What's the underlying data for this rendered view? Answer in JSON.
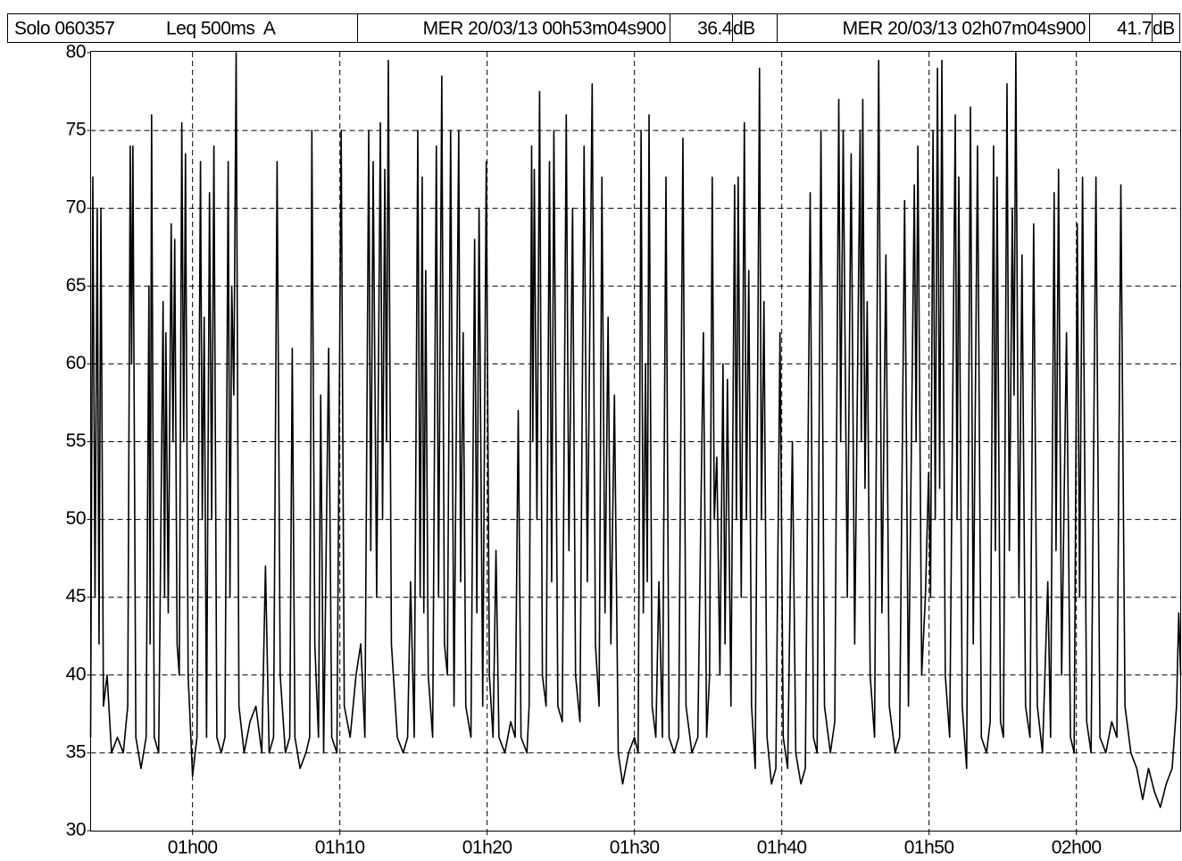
{
  "header": {
    "device": "Solo 060357",
    "mode": "Leq 500ms  A",
    "cursor1": {
      "time": "MER 20/03/13 00h53m04s900",
      "level": "36.4",
      "unit": "dB"
    },
    "cursor2": {
      "time": "MER 20/03/13 02h07m04s900",
      "level": "41.7",
      "unit": "dB"
    }
  },
  "chart_data": {
    "type": "line",
    "color": "#000000",
    "grid": true,
    "xlim": [
      53.08,
      127.08
    ],
    "xticks": [
      {
        "value": 60,
        "label": "01h00"
      },
      {
        "value": 70,
        "label": "01h10"
      },
      {
        "value": 80,
        "label": "01h20"
      },
      {
        "value": 90,
        "label": "01h30"
      },
      {
        "value": 100,
        "label": "01h40"
      },
      {
        "value": 110,
        "label": "01h50"
      },
      {
        "value": 120,
        "label": "02h00"
      }
    ],
    "ylim": [
      30,
      80
    ],
    "yticks": [
      30,
      35,
      40,
      45,
      50,
      55,
      60,
      65,
      70,
      75,
      80
    ],
    "x": [
      53.08,
      53.23,
      53.38,
      53.53,
      53.65,
      53.78,
      53.95,
      54.2,
      54.5,
      54.9,
      55.3,
      55.6,
      55.77,
      55.86,
      55.95,
      56.15,
      56.5,
      56.85,
      57.04,
      57.12,
      57.22,
      57.4,
      57.7,
      58.0,
      58.1,
      58.19,
      58.35,
      58.55,
      58.67,
      58.79,
      58.95,
      59.1,
      59.27,
      59.4,
      59.52,
      59.7,
      60.0,
      60.3,
      60.54,
      60.66,
      60.79,
      60.95,
      61.15,
      61.3,
      61.45,
      61.65,
      61.95,
      62.2,
      62.42,
      62.54,
      62.66,
      62.8,
      62.96,
      63.15,
      63.5,
      63.9,
      64.3,
      64.7,
      64.95,
      65.2,
      65.5,
      65.74,
      65.95,
      66.3,
      66.6,
      66.77,
      66.95,
      67.3,
      67.7,
      67.95,
      68.1,
      68.3,
      68.55,
      68.7,
      68.9,
      69.24,
      69.45,
      69.8,
      70.09,
      70.3,
      70.7,
      71.1,
      71.42,
      71.7,
      71.96,
      72.1,
      72.26,
      72.5,
      72.75,
      72.9,
      73.05,
      73.17,
      73.29,
      73.5,
      73.9,
      74.3,
      74.6,
      74.8,
      75.05,
      75.29,
      75.45,
      75.59,
      75.7,
      75.83,
      76.0,
      76.3,
      76.55,
      76.7,
      76.92,
      77.1,
      77.3,
      77.52,
      77.75,
      78.07,
      78.2,
      78.37,
      78.55,
      78.9,
      79.15,
      79.3,
      79.45,
      79.7,
      79.94,
      80.15,
      80.4,
      80.6,
      80.8,
      81.2,
      81.6,
      81.9,
      82.11,
      82.3,
      82.7,
      82.85,
      83.02,
      83.1,
      83.2,
      83.38,
      83.56,
      83.75,
      84.0,
      84.23,
      84.38,
      84.53,
      84.8,
      85.1,
      85.37,
      85.55,
      85.8,
      86.0,
      86.3,
      86.58,
      86.8,
      87.13,
      87.35,
      87.6,
      87.79,
      88.0,
      88.21,
      88.4,
      88.64,
      88.9,
      89.2,
      89.6,
      90.0,
      90.25,
      90.45,
      90.6,
      90.75,
      90.87,
      90.99,
      91.2,
      91.45,
      91.66,
      91.9,
      92.14,
      92.35,
      92.7,
      93.0,
      93.29,
      93.5,
      93.9,
      94.3,
      94.68,
      94.9,
      95.1,
      95.28,
      95.42,
      95.59,
      95.8,
      96.01,
      96.15,
      96.31,
      96.55,
      96.8,
      96.92,
      97.04,
      97.25,
      97.46,
      97.6,
      97.76,
      97.95,
      98.2,
      98.49,
      98.62,
      98.79,
      99.0,
      99.3,
      99.6,
      99.88,
      100.1,
      100.4,
      100.72,
      100.95,
      101.3,
      101.6,
      101.93,
      102.15,
      102.4,
      102.66,
      102.9,
      103.3,
      103.6,
      103.87,
      104.0,
      104.17,
      104.45,
      104.71,
      104.95,
      105.32,
      105.4,
      105.5,
      105.65,
      105.8,
      106.0,
      106.3,
      106.58,
      106.8,
      107.07,
      107.3,
      107.7,
      108.0,
      108.34,
      108.6,
      109.0,
      109.12,
      109.24,
      109.5,
      109.75,
      109.97,
      110.1,
      110.27,
      110.42,
      110.57,
      110.72,
      110.87,
      111.1,
      111.4,
      111.78,
      111.9,
      112.02,
      112.25,
      112.55,
      112.81,
      113.0,
      113.29,
      113.55,
      113.9,
      114.15,
      114.38,
      114.5,
      114.62,
      114.85,
      115.05,
      115.29,
      115.45,
      115.65,
      115.77,
      115.89,
      116.1,
      116.31,
      116.55,
      116.85,
      117.1,
      117.35,
      117.7,
      118.06,
      118.25,
      118.49,
      118.62,
      118.79,
      119.0,
      119.33,
      119.6,
      119.85,
      120.06,
      120.22,
      120.42,
      120.7,
      121.0,
      121.33,
      121.6,
      122.0,
      122.4,
      122.75,
      123.02,
      123.3,
      123.7,
      124.1,
      124.5,
      124.9,
      125.3,
      125.7,
      126.1,
      126.5,
      126.8,
      126.95,
      127.08
    ],
    "values": [
      36,
      72,
      45,
      70,
      42,
      70,
      38,
      40,
      35,
      36,
      35,
      38,
      74,
      60,
      74,
      36,
      34,
      36,
      65,
      42,
      76,
      36,
      35,
      64,
      45,
      62,
      44,
      69,
      55,
      68,
      42,
      40,
      75.5,
      55,
      73.5,
      40,
      33.5,
      36,
      73,
      50,
      63,
      36,
      71,
      50,
      74,
      36,
      35,
      36,
      73,
      45,
      65,
      58,
      80,
      38,
      35,
      37,
      38,
      35,
      47,
      35,
      36,
      73,
      40,
      35,
      36,
      61,
      36,
      34,
      35,
      36,
      75,
      42,
      36,
      58,
      35,
      61,
      36,
      35,
      75,
      38,
      36,
      40,
      42,
      36,
      75,
      48,
      73,
      45,
      75.5,
      50,
      72.5,
      55,
      79.5,
      42,
      36,
      35,
      36,
      46,
      36,
      75,
      45,
      72,
      44,
      66,
      40,
      36,
      74,
      45,
      78.5,
      42,
      40,
      75,
      38,
      75,
      46,
      62,
      38,
      36,
      68,
      44,
      70,
      38,
      73,
      40,
      36,
      48,
      36,
      35,
      37,
      36,
      57,
      36,
      35,
      38,
      74,
      55,
      72.5,
      50,
      77.5,
      40,
      38,
      73,
      46,
      75,
      38,
      37,
      76,
      48,
      70,
      40,
      37,
      74,
      46,
      78,
      42,
      38,
      72,
      44,
      63,
      42,
      58,
      35,
      33,
      35,
      36,
      35,
      75,
      44,
      60,
      46,
      76,
      38,
      36,
      46,
      36,
      72,
      36,
      35,
      36,
      74.5,
      38,
      35,
      36,
      62,
      36,
      40,
      72,
      50,
      54,
      40,
      60,
      42,
      59,
      38,
      71.5,
      50,
      72,
      45,
      75.5,
      50,
      66,
      38,
      34,
      79,
      50,
      64,
      36,
      33,
      34,
      62,
      36,
      34,
      55,
      35,
      33,
      34,
      71,
      36,
      35,
      75,
      38,
      35,
      37,
      77,
      55,
      75,
      45,
      73.5,
      42,
      75,
      55,
      77,
      52,
      64,
      40,
      36,
      79.5,
      44,
      67,
      38,
      35,
      36,
      70.5,
      38,
      71.5,
      55,
      74,
      40,
      45,
      53,
      45,
      75,
      50,
      79,
      52,
      79.5,
      40,
      36,
      76,
      50,
      72,
      38,
      34,
      76.5,
      42,
      74,
      36,
      35,
      37,
      74,
      48,
      72,
      37,
      36,
      78,
      48,
      70,
      58,
      80,
      45,
      67,
      38,
      36,
      69,
      38,
      35,
      46,
      36,
      71,
      48,
      72.5,
      40,
      62,
      36,
      35,
      69,
      45,
      72,
      37,
      35,
      72,
      36,
      35,
      37,
      36,
      71.5,
      38,
      35,
      34,
      32,
      34,
      32.5,
      31.5,
      33,
      34,
      38,
      44,
      40
    ]
  }
}
